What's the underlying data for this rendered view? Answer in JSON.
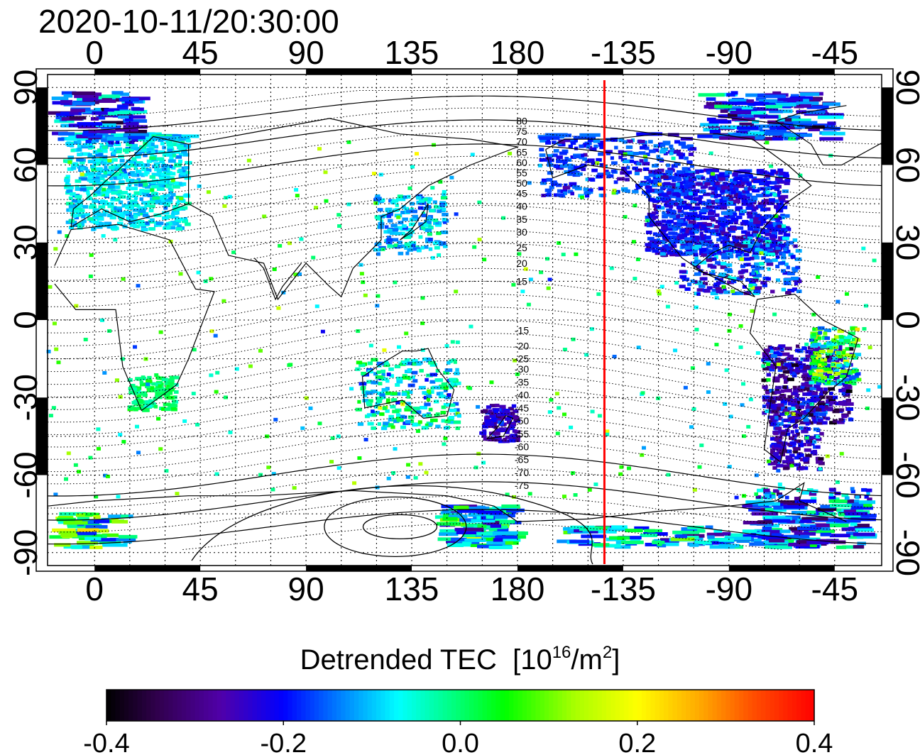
{
  "timestamp": "2020-10-11/20:30:00",
  "colorbar": {
    "label": "Detrended TEC",
    "unit_prefix": "[10",
    "unit_exp": "16",
    "unit_mid": "/m",
    "unit_exp2": "2",
    "unit_suffix": "]",
    "ticks": [
      "-0.4",
      "-0.2",
      "0.0",
      "0.2",
      "0.4"
    ],
    "range": [
      -0.4,
      0.4
    ],
    "colors": [
      "#000000",
      "#2a0050",
      "#4a00a0",
      "#0000ff",
      "#0088ff",
      "#00ffff",
      "#00ff80",
      "#00ff00",
      "#b0ff00",
      "#ffff00",
      "#ffa000",
      "#ff4000",
      "#ff0000"
    ]
  },
  "axes": {
    "top_lon_ticks": [
      "0",
      "45",
      "90",
      "135",
      "180",
      "-135",
      "-90",
      "-45"
    ],
    "bottom_lon_ticks": [
      "0",
      "45",
      "90",
      "135",
      "180",
      "-135",
      "-90",
      "-45"
    ],
    "left_lat_ticks": [
      "90",
      "60",
      "30",
      "0",
      "-30",
      "-60",
      "-90"
    ],
    "right_lat_ticks": [
      "90",
      "60",
      "30",
      "0",
      "-30",
      "-60",
      "-90"
    ]
  },
  "contour_labels": {
    "north": [
      "80",
      "75",
      "70",
      "65",
      "60",
      "55",
      "50",
      "45",
      "40",
      "35",
      "30",
      "25",
      "20",
      "15"
    ],
    "south": [
      "-15",
      "-20",
      "-25",
      "-30",
      "-35",
      "-40",
      "-45",
      "-50",
      "-55",
      "-60",
      "-65",
      "-70",
      "-75"
    ]
  },
  "marker": {
    "longitude": -143,
    "color": "#ff0000"
  },
  "map": {
    "lon_range": [
      -20,
      335
    ],
    "lat_range": [
      -95,
      95
    ]
  }
}
